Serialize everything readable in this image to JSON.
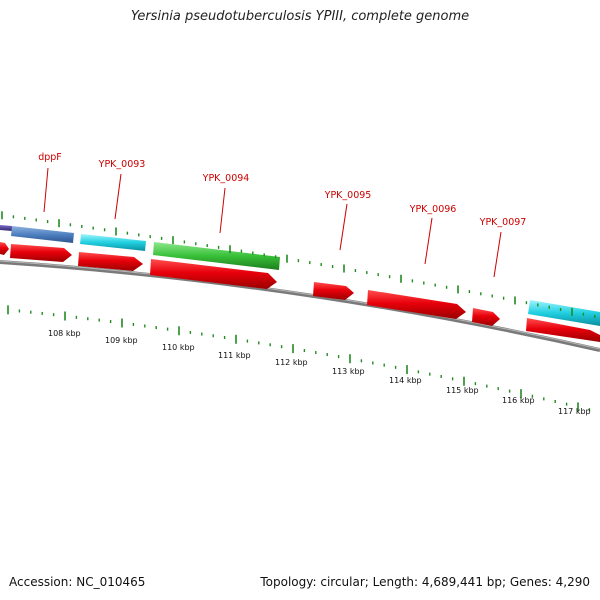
{
  "title": "Yersinia pseudotuberculosis YPIII, complete genome",
  "accession": "Accession: NC_010465",
  "summary": "Topology: circular; Length: 4,689,441 bp; Genes: 4,290",
  "tick_labels": [
    "108 kbp",
    "109 kbp",
    "110 kbp",
    "111 kbp",
    "112 kbp",
    "113 kbp",
    "114 kbp",
    "115 kbp",
    "116 kbp",
    "117 kbp"
  ],
  "gene_labels": [
    "dppF",
    "YPK_0093",
    "YPK_0094",
    "YPK_0095",
    "YPK_0096",
    "YPK_0097"
  ],
  "colors": {
    "gene": "#e8000b",
    "label": "#cc0000",
    "tick": "#228b22",
    "backbone": "#8a8a8a",
    "feature_steelblue": "#4f80c0",
    "feature_cyan": "#20d0e0",
    "feature_green": "#38c038",
    "feature_purple": "#50409a"
  }
}
